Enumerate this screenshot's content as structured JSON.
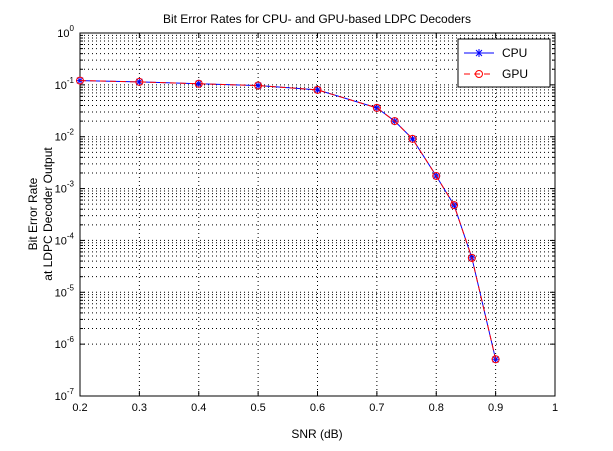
{
  "chart_data": {
    "type": "line",
    "title": "Bit Error Rates for CPU- and GPU-based LDPC Decoders",
    "xlabel": "SNR (dB)",
    "ylabel": [
      "Bit Error Rate",
      "at LDPC Decoder Output"
    ],
    "xlim": [
      0.2,
      1
    ],
    "ylim": [
      1e-07,
      1
    ],
    "yscale": "log",
    "grid": true,
    "legend_position": "top-right",
    "x_ticks": [
      0.2,
      0.3,
      0.4,
      0.5,
      0.6,
      0.7,
      0.8,
      0.9,
      1
    ],
    "x_tick_labels": [
      "0.2",
      "0.3",
      "0.4",
      "0.5",
      "0.6",
      "0.7",
      "0.8",
      "0.9",
      "1"
    ],
    "y_tick_exponents": [
      0,
      -1,
      -2,
      -3,
      -4,
      -5,
      -6,
      -7
    ],
    "y_tick_base": "10",
    "x": [
      0.2,
      0.3,
      0.4,
      0.5,
      0.6,
      0.7,
      0.73,
      0.76,
      0.8,
      0.83,
      0.86,
      0.9
    ],
    "series": [
      {
        "name": "CPU",
        "color": "#0000ff",
        "marker": "asterisk",
        "values": [
          0.121,
          0.114,
          0.105,
          0.097,
          0.08,
          0.036,
          0.02,
          0.0091,
          0.00175,
          0.00048,
          4.6e-05,
          5.1e-07
        ]
      },
      {
        "name": "GPU",
        "color": "#ff0000",
        "marker": "circle",
        "values": [
          0.121,
          0.114,
          0.105,
          0.097,
          0.08,
          0.036,
          0.02,
          0.0091,
          0.00175,
          0.00048,
          4.6e-05,
          5.1e-07
        ]
      }
    ]
  }
}
